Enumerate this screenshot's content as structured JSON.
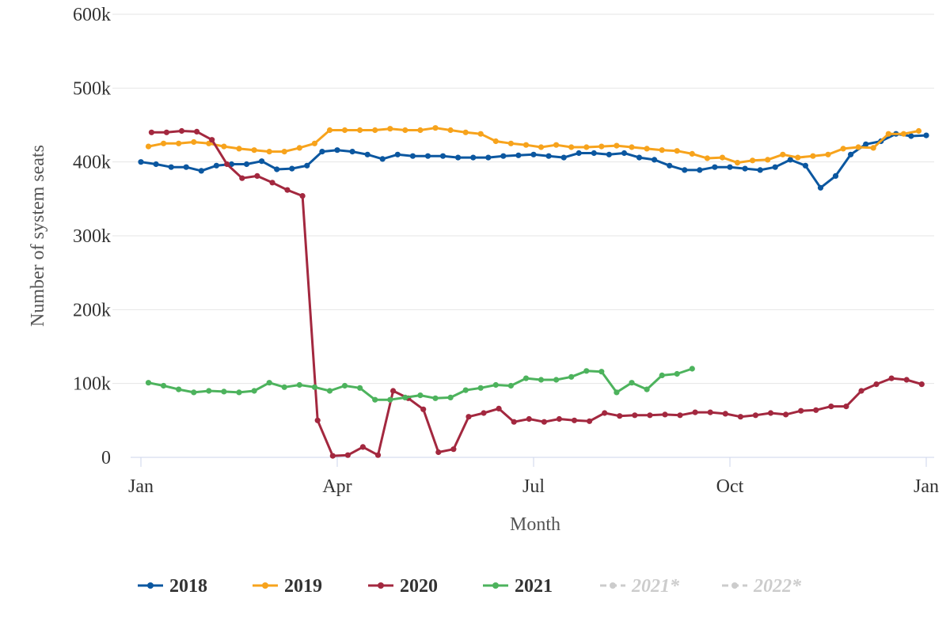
{
  "chart_data": {
    "type": "line",
    "title": "",
    "xlabel": "Month",
    "ylabel": "Number of system seats",
    "ylim": [
      0,
      600000
    ],
    "y_ticks": [
      {
        "value": 0,
        "label": "0"
      },
      {
        "value": 100000,
        "label": "100k"
      },
      {
        "value": 200000,
        "label": "200k"
      },
      {
        "value": 300000,
        "label": "300k"
      },
      {
        "value": 400000,
        "label": "400k"
      },
      {
        "value": 500000,
        "label": "500k"
      },
      {
        "value": 600000,
        "label": "600k"
      }
    ],
    "x_ticks": [
      {
        "week": 0,
        "label": "Jan"
      },
      {
        "week": 13,
        "label": "Apr"
      },
      {
        "week": 26,
        "label": "Jul"
      },
      {
        "week": 39,
        "label": "Oct"
      },
      {
        "week": 52,
        "label": "Jan"
      }
    ],
    "grid": true,
    "legend_position": "bottom",
    "series": [
      {
        "name": "2018",
        "color": "#0b57a0",
        "visible": true,
        "x_start": 0,
        "values": [
          400000,
          397000,
          393000,
          393000,
          388000,
          395000,
          397000,
          397000,
          401000,
          390000,
          391000,
          395000,
          414000,
          416000,
          414000,
          410000,
          404000,
          410000,
          408000,
          408000,
          408000,
          406000,
          406000,
          406000,
          408000,
          409000,
          410000,
          408000,
          406000,
          412000,
          412000,
          410000,
          412000,
          406000,
          403000,
          395000,
          389000,
          389000,
          393000,
          393000,
          391000,
          389000,
          393000,
          403000,
          395000,
          365000,
          381000,
          410000,
          424000,
          428000,
          438000,
          435000,
          436000
        ]
      },
      {
        "name": "2019",
        "color": "#f7a31c",
        "visible": true,
        "x_start": 0.5,
        "values": [
          421000,
          425000,
          425000,
          427000,
          425000,
          421000,
          418000,
          416000,
          414000,
          414000,
          419000,
          425000,
          443000,
          443000,
          443000,
          443000,
          445000,
          443000,
          443000,
          446000,
          443000,
          440000,
          438000,
          428000,
          425000,
          423000,
          420000,
          423000,
          420000,
          420000,
          421000,
          422000,
          420000,
          418000,
          416000,
          415000,
          411000,
          405000,
          406000,
          399000,
          402000,
          403000,
          410000,
          406000,
          408000,
          410000,
          418000,
          420000,
          419000,
          438000,
          438000,
          442000
        ]
      },
      {
        "name": "2020",
        "color": "#a3283f",
        "visible": true,
        "x_start": 0.7,
        "values": [
          440000,
          440000,
          442000,
          441000,
          430000,
          397000,
          378000,
          381000,
          372000,
          362000,
          354000,
          50000,
          2000,
          3000,
          14000,
          3000,
          90000,
          80000,
          65000,
          7000,
          11000,
          55000,
          60000,
          66000,
          48000,
          52000,
          48000,
          52000,
          50000,
          49000,
          60000,
          56000,
          57000,
          57000,
          58000,
          57000,
          61000,
          61000,
          59000,
          55000,
          57000,
          60000,
          58000,
          63000,
          64000,
          69000,
          69000,
          90000,
          99000,
          107000,
          105000,
          99000
        ]
      },
      {
        "name": "2021",
        "color": "#4db35d",
        "visible": true,
        "x_start": 0.5,
        "values": [
          101000,
          97000,
          92000,
          88000,
          90000,
          89000,
          88000,
          90000,
          101000,
          95000,
          98000,
          95000,
          90000,
          97000,
          94000,
          78000,
          78000,
          81000,
          84000,
          80000,
          81000,
          91000,
          94000,
          98000,
          97000,
          107000,
          105000,
          105000,
          109000,
          117000,
          116000,
          88000,
          101000,
          92000,
          111000,
          113000,
          120000
        ]
      },
      {
        "name": "2021*",
        "color": "#cccccc",
        "visible": false,
        "dashed": true,
        "values": []
      },
      {
        "name": "2022*",
        "color": "#cccccc",
        "visible": false,
        "dashed": true,
        "values": []
      }
    ]
  }
}
